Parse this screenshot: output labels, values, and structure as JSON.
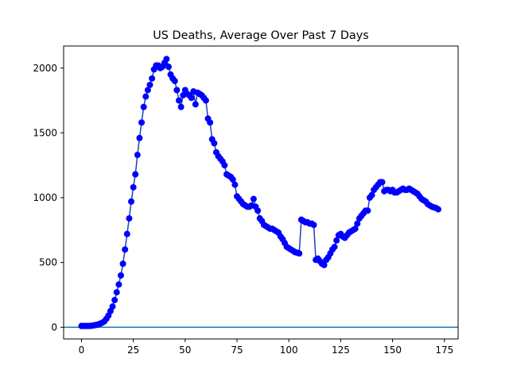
{
  "chart_data": {
    "type": "line",
    "title": "US Deaths, Average Over Past 7 Days",
    "xlabel": "",
    "ylabel": "",
    "xlim": [
      -8.6,
      181.6
    ],
    "ylim": [
      -90,
      2170
    ],
    "xticks": [
      0,
      25,
      50,
      75,
      100,
      125,
      150,
      175
    ],
    "yticks": [
      0,
      500,
      1000,
      1500,
      2000
    ],
    "grid": false,
    "legend": "none",
    "series_color": "#0000ff",
    "series_line_color": "#1f3fbf",
    "reference_line": {
      "y": 0,
      "color": "#1f77b4"
    },
    "series": [
      {
        "values": [
          [
            0,
            10
          ],
          [
            1,
            10
          ],
          [
            2,
            10
          ],
          [
            3,
            10
          ],
          [
            4,
            10
          ],
          [
            5,
            12
          ],
          [
            6,
            15
          ],
          [
            7,
            18
          ],
          [
            8,
            22
          ],
          [
            9,
            28
          ],
          [
            10,
            35
          ],
          [
            11,
            45
          ],
          [
            12,
            65
          ],
          [
            13,
            90
          ],
          [
            14,
            125
          ],
          [
            15,
            160
          ],
          [
            16,
            210
          ],
          [
            17,
            270
          ],
          [
            18,
            330
          ],
          [
            19,
            400
          ],
          [
            20,
            490
          ],
          [
            21,
            600
          ],
          [
            22,
            720
          ],
          [
            23,
            840
          ],
          [
            24,
            970
          ],
          [
            25,
            1080
          ],
          [
            26,
            1180
          ],
          [
            27,
            1330
          ],
          [
            28,
            1460
          ],
          [
            29,
            1580
          ],
          [
            30,
            1700
          ],
          [
            31,
            1780
          ],
          [
            32,
            1830
          ],
          [
            33,
            1870
          ],
          [
            34,
            1920
          ],
          [
            35,
            1990
          ],
          [
            36,
            2020
          ],
          [
            37,
            2020
          ],
          [
            38,
            2000
          ],
          [
            39,
            2010
          ],
          [
            40,
            2040
          ],
          [
            41,
            2070
          ],
          [
            42,
            2010
          ],
          [
            43,
            1950
          ],
          [
            44,
            1920
          ],
          [
            45,
            1900
          ],
          [
            46,
            1830
          ],
          [
            47,
            1750
          ],
          [
            48,
            1700
          ],
          [
            49,
            1790
          ],
          [
            50,
            1830
          ],
          [
            51,
            1800
          ],
          [
            52,
            1790
          ],
          [
            53,
            1770
          ],
          [
            54,
            1820
          ],
          [
            55,
            1720
          ],
          [
            56,
            1810
          ],
          [
            57,
            1800
          ],
          [
            58,
            1790
          ],
          [
            59,
            1770
          ],
          [
            60,
            1750
          ],
          [
            61,
            1610
          ],
          [
            62,
            1580
          ],
          [
            63,
            1450
          ],
          [
            64,
            1420
          ],
          [
            65,
            1350
          ],
          [
            66,
            1320
          ],
          [
            67,
            1300
          ],
          [
            68,
            1280
          ],
          [
            69,
            1250
          ],
          [
            70,
            1180
          ],
          [
            71,
            1170
          ],
          [
            72,
            1160
          ],
          [
            73,
            1140
          ],
          [
            74,
            1100
          ],
          [
            75,
            1010
          ],
          [
            76,
            990
          ],
          [
            77,
            970
          ],
          [
            78,
            950
          ],
          [
            79,
            940
          ],
          [
            80,
            930
          ],
          [
            81,
            930
          ],
          [
            82,
            940
          ],
          [
            83,
            990
          ],
          [
            84,
            930
          ],
          [
            85,
            900
          ],
          [
            86,
            840
          ],
          [
            87,
            820
          ],
          [
            88,
            790
          ],
          [
            89,
            780
          ],
          [
            90,
            770
          ],
          [
            91,
            760
          ],
          [
            92,
            760
          ],
          [
            93,
            750
          ],
          [
            94,
            740
          ],
          [
            95,
            730
          ],
          [
            96,
            700
          ],
          [
            97,
            680
          ],
          [
            98,
            650
          ],
          [
            99,
            620
          ],
          [
            100,
            610
          ],
          [
            101,
            600
          ],
          [
            102,
            590
          ],
          [
            103,
            580
          ],
          [
            104,
            575
          ],
          [
            105,
            570
          ],
          [
            106,
            830
          ],
          [
            107,
            820
          ],
          [
            108,
            810
          ],
          [
            109,
            810
          ],
          [
            110,
            800
          ],
          [
            111,
            800
          ],
          [
            112,
            790
          ],
          [
            113,
            520
          ],
          [
            114,
            530
          ],
          [
            115,
            510
          ],
          [
            116,
            490
          ],
          [
            117,
            480
          ],
          [
            118,
            520
          ],
          [
            119,
            540
          ],
          [
            120,
            570
          ],
          [
            121,
            600
          ],
          [
            122,
            620
          ],
          [
            123,
            670
          ],
          [
            124,
            710
          ],
          [
            125,
            720
          ],
          [
            126,
            700
          ],
          [
            127,
            690
          ],
          [
            128,
            710
          ],
          [
            129,
            730
          ],
          [
            130,
            740
          ],
          [
            131,
            750
          ],
          [
            132,
            760
          ],
          [
            133,
            800
          ],
          [
            134,
            840
          ],
          [
            135,
            860
          ],
          [
            136,
            880
          ],
          [
            137,
            900
          ],
          [
            138,
            900
          ],
          [
            139,
            1000
          ],
          [
            140,
            1020
          ],
          [
            141,
            1060
          ],
          [
            142,
            1080
          ],
          [
            143,
            1100
          ],
          [
            144,
            1120
          ],
          [
            145,
            1120
          ],
          [
            146,
            1050
          ],
          [
            147,
            1060
          ],
          [
            148,
            1060
          ],
          [
            149,
            1050
          ],
          [
            150,
            1060
          ],
          [
            151,
            1040
          ],
          [
            152,
            1040
          ],
          [
            153,
            1050
          ],
          [
            154,
            1060
          ],
          [
            155,
            1070
          ],
          [
            156,
            1060
          ],
          [
            157,
            1060
          ],
          [
            158,
            1070
          ],
          [
            159,
            1060
          ],
          [
            160,
            1050
          ],
          [
            161,
            1040
          ],
          [
            162,
            1030
          ],
          [
            163,
            1010
          ],
          [
            164,
            990
          ],
          [
            165,
            980
          ],
          [
            166,
            970
          ],
          [
            167,
            950
          ],
          [
            168,
            940
          ],
          [
            169,
            930
          ],
          [
            170,
            925
          ],
          [
            171,
            920
          ],
          [
            172,
            910
          ]
        ]
      }
    ]
  }
}
